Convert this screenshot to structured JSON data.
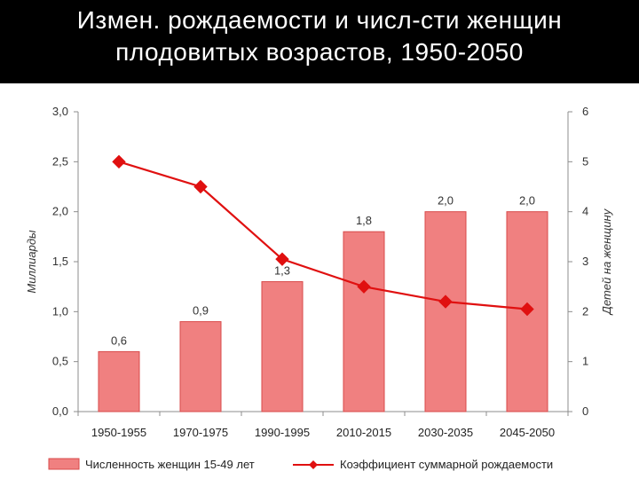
{
  "slide": {
    "title_line1": "Измен. рождаемости и числ-сти женщин",
    "title_line2": "плодовитых возрастов, 1950-2050"
  },
  "chart_data": {
    "type": "bar",
    "categories": [
      "1950-1955",
      "1970-1975",
      "1990-1995",
      "2010-2015",
      "2030-2035",
      "2045-2050"
    ],
    "series": [
      {
        "name": "Численность женщин 15-49 лет",
        "kind": "bar",
        "axis": "left",
        "values": [
          0.6,
          0.9,
          1.3,
          1.8,
          2.0,
          2.0
        ],
        "labels": [
          "0,6",
          "0,9",
          "1,3",
          "1,8",
          "2,0",
          "2,0"
        ]
      },
      {
        "name": "Коэффициент суммарной рождаемости",
        "kind": "line",
        "axis": "right",
        "values": [
          5.0,
          4.5,
          3.05,
          2.5,
          2.2,
          2.05
        ]
      }
    ],
    "ylabel": "Миллиарды",
    "ylabel_right": "Детей на женщину",
    "ylim": [
      0,
      3
    ],
    "ylim_right": [
      0,
      6
    ],
    "yticks": [
      "0,0",
      "0,5",
      "1,0",
      "1,5",
      "2,0",
      "2,5",
      "3,0"
    ],
    "yticks_right": [
      "0",
      "1",
      "2",
      "3",
      "4",
      "5",
      "6"
    ],
    "grid": false,
    "legend_position": "bottom",
    "colors": {
      "bar_fill": "#f08080",
      "bar_stroke": "#d84a4a",
      "line": "#e01010"
    }
  }
}
